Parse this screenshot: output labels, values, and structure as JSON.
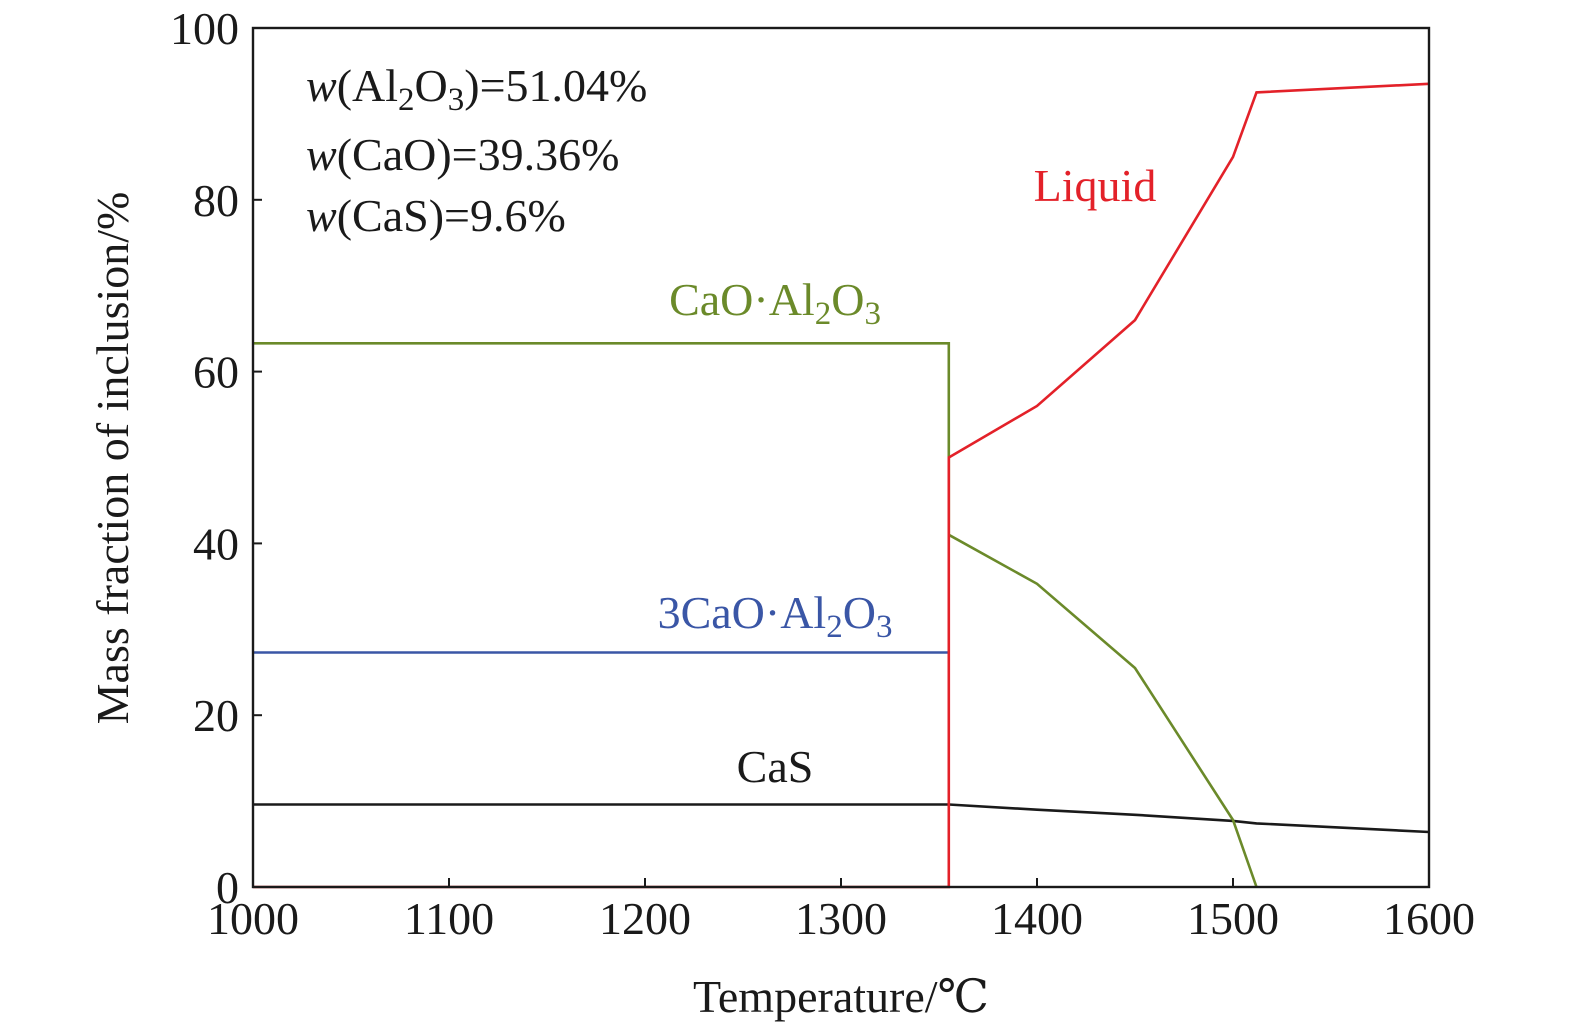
{
  "chart_data": {
    "type": "line",
    "xlabel": "Temperature/℃",
    "ylabel": "Mass fraction of inclusion/%",
    "xlim": [
      1000,
      1600
    ],
    "ylim": [
      0,
      100
    ],
    "xticks": [
      1000,
      1100,
      1200,
      1300,
      1400,
      1500,
      1600
    ],
    "yticks": [
      0,
      20,
      40,
      60,
      80,
      100
    ],
    "grid": false,
    "annotations": [
      {
        "prefix": "w",
        "species": [
          "(Al",
          "2",
          "O",
          "3",
          ")"
        ],
        "value": "=51.04%"
      },
      {
        "prefix": "w",
        "species": [
          "(CaO)"
        ],
        "value": "=39.36%"
      },
      {
        "prefix": "w",
        "species": [
          "(CaS)"
        ],
        "value": "=9.6%"
      }
    ],
    "series": [
      {
        "name": "Liquid",
        "label_parts": [
          "Liquid"
        ],
        "color": "#e32129",
        "x": [
          1000,
          1355,
          1355,
          1400,
          1450,
          1500,
          1512,
          1600
        ],
        "y": [
          0,
          0,
          50.0,
          56.0,
          66.0,
          85.0,
          92.5,
          93.5
        ]
      },
      {
        "name": "CaO·Al2O3",
        "label_parts": [
          "CaO·Al",
          "2",
          "O",
          "3"
        ],
        "color": "#6b8a2a",
        "x": [
          1000,
          1355,
          1355,
          1400,
          1450,
          1500,
          1512
        ],
        "y": [
          63.3,
          63.3,
          41.0,
          35.3,
          25.5,
          7.8,
          0
        ]
      },
      {
        "name": "3CaO·Al2O3",
        "label_parts": [
          "3CaO·Al",
          "2",
          "O",
          "3"
        ],
        "color": "#3a56a6",
        "x": [
          1000,
          1355
        ],
        "y": [
          27.3,
          27.3
        ]
      },
      {
        "name": "CaS",
        "label_parts": [
          "CaS"
        ],
        "color": "#1a1a1a",
        "x": [
          1000,
          1355,
          1400,
          1450,
          1500,
          1512,
          1600
        ],
        "y": [
          9.6,
          9.6,
          9.0,
          8.4,
          7.7,
          7.4,
          6.4
        ]
      }
    ]
  }
}
